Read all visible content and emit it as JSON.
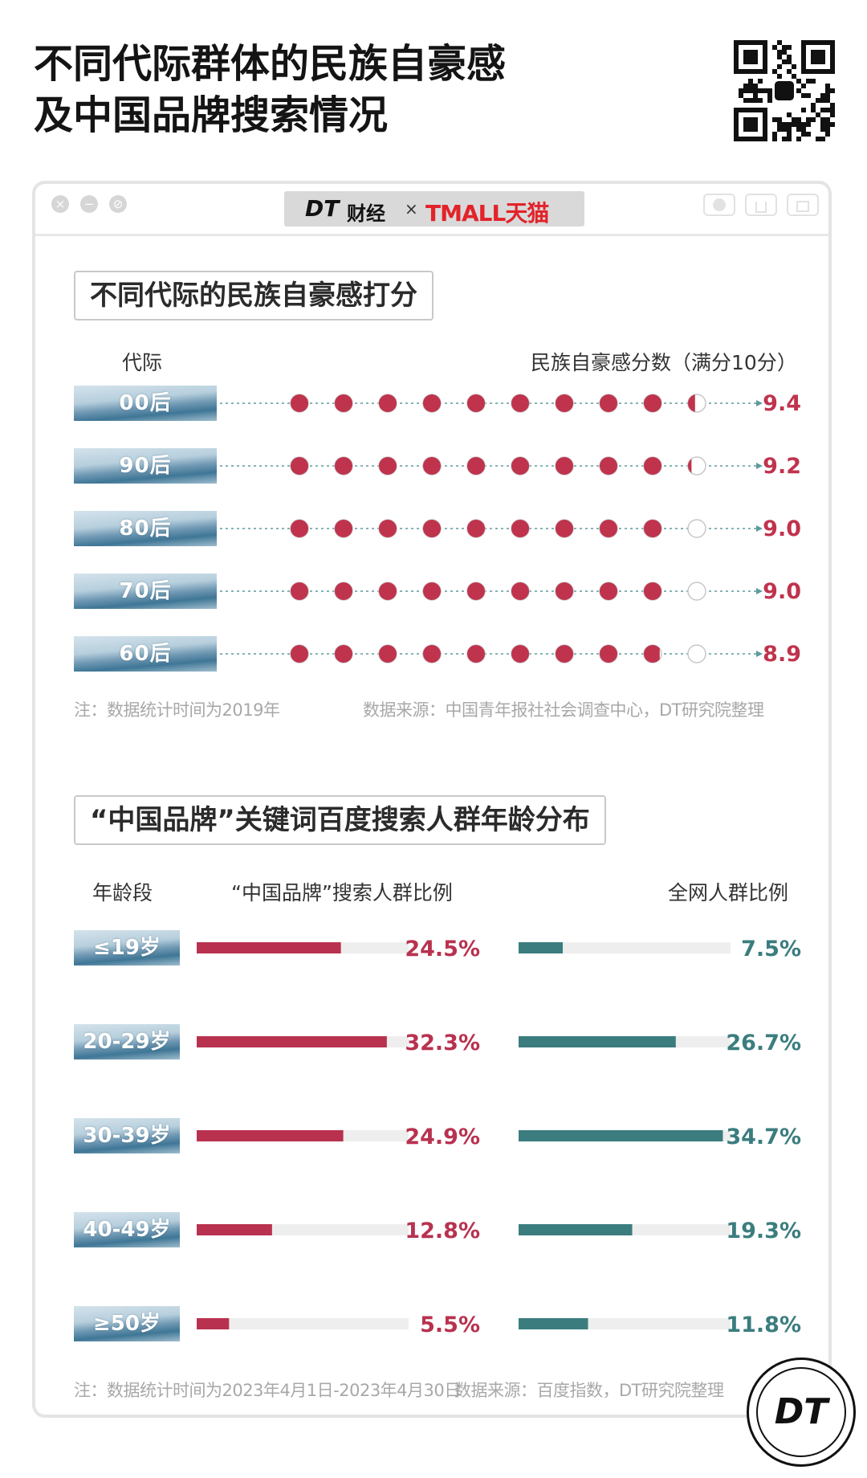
{
  "page": {
    "title_line1": "不同代际群体的民族自豪感",
    "title_line2": "及中国品牌搜索情况"
  },
  "window": {
    "brand_dt": "DT",
    "brand_caijing": "财经",
    "brand_times": "×",
    "brand_tmall": "TMALL天猫"
  },
  "badge": {
    "text": "DT"
  },
  "chart_data": [
    {
      "type": "dot",
      "title": "不同代际的民族自豪感打分",
      "category_header": "代际",
      "value_header": "民族自豪感分数（满分10分）",
      "max": 10,
      "categories": [
        "00后",
        "90后",
        "80后",
        "70后",
        "60后"
      ],
      "values": [
        9.4,
        9.2,
        9.0,
        9.0,
        8.9
      ],
      "value_labels": [
        "9.4",
        "9.2",
        "9.0",
        "9.0",
        "8.9"
      ],
      "note": "注：数据统计时间为2019年",
      "source": "数据来源：中国青年报社社会调查中心，DT研究院整理",
      "colors": {
        "filled": "#c0334d",
        "empty_stroke": "#c7c7c7",
        "line": "#5f9a9c"
      }
    },
    {
      "type": "bar",
      "title": "“中国品牌”关键词百度搜索人群年龄分布",
      "category_header": "年龄段",
      "categories": [
        "≤19岁",
        "20-29岁",
        "30-39岁",
        "40-49岁",
        "≥50岁"
      ],
      "series": [
        {
          "name": "“中国品牌”搜索人群比例",
          "values": [
            24.5,
            32.3,
            24.9,
            12.8,
            5.5
          ],
          "labels": [
            "24.5%",
            "32.3%",
            "24.9%",
            "12.8%",
            "5.5%"
          ],
          "color": "#b8324f"
        },
        {
          "name": "全网人群比例",
          "values": [
            7.5,
            26.7,
            34.7,
            19.3,
            11.8
          ],
          "labels": [
            "7.5%",
            "26.7%",
            "34.7%",
            "19.3%",
            "11.8%"
          ],
          "color": "#3b7d7f"
        }
      ],
      "note": "注：数据统计时间为2023年4月1日-2023年4月30日",
      "source": "数据来源：百度指数，DT研究院整理"
    }
  ]
}
